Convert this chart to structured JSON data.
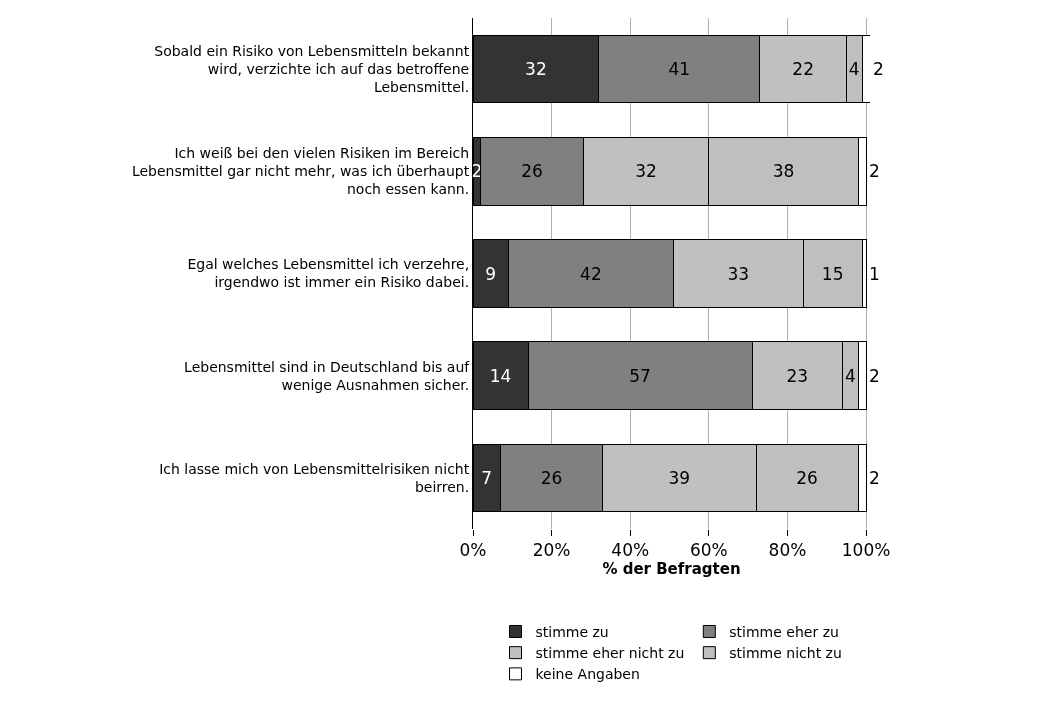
{
  "chart_data": {
    "type": "bar",
    "orientation": "horizontal",
    "stacked": true,
    "xlabel": "% der Befragten",
    "categories": [
      "Sobald ein Risiko von Lebensmitteln bekannt wird, verzichte ich auf das betroffene Lebensmittel.",
      "Ich weiß bei den vielen Risiken im Bereich Lebensmittel gar nicht mehr, was ich überhaupt noch essen kann.",
      "Egal welches Lebensmittel ich verzehre, irgendwo ist immer ein Risiko dabei.",
      "Lebensmittel sind in Deutschland bis auf wenige Ausnahmen sicher.",
      "Ich lasse mich von Lebensmittelrisiken nicht beirren."
    ],
    "series": [
      {
        "name": "stimme zu",
        "color": "#333333",
        "values": [
          32,
          2,
          9,
          14,
          7
        ]
      },
      {
        "name": "stimme eher zu",
        "color": "#808080",
        "values": [
          41,
          26,
          42,
          57,
          26
        ]
      },
      {
        "name": "stimme eher nicht zu",
        "color": "#c0c0c0",
        "values": [
          22,
          32,
          33,
          23,
          39
        ]
      },
      {
        "name": "stimme nicht zu",
        "color": "#bfbfbf",
        "values": [
          4,
          38,
          15,
          4,
          26
        ]
      },
      {
        "name": "keine Angaben",
        "color": "#ffffff",
        "values": [
          2,
          2,
          1,
          2,
          2
        ]
      }
    ],
    "xlim": [
      0,
      101
    ],
    "xticks": [
      {
        "value": 0,
        "label": "0%"
      },
      {
        "value": 20,
        "label": "20%"
      },
      {
        "value": 40,
        "label": "40%"
      },
      {
        "value": 60,
        "label": "60%"
      },
      {
        "value": 80,
        "label": "80%"
      },
      {
        "value": 100,
        "label": "100%"
      }
    ],
    "grid": "x",
    "legend": "bottom",
    "data_labels": true
  }
}
